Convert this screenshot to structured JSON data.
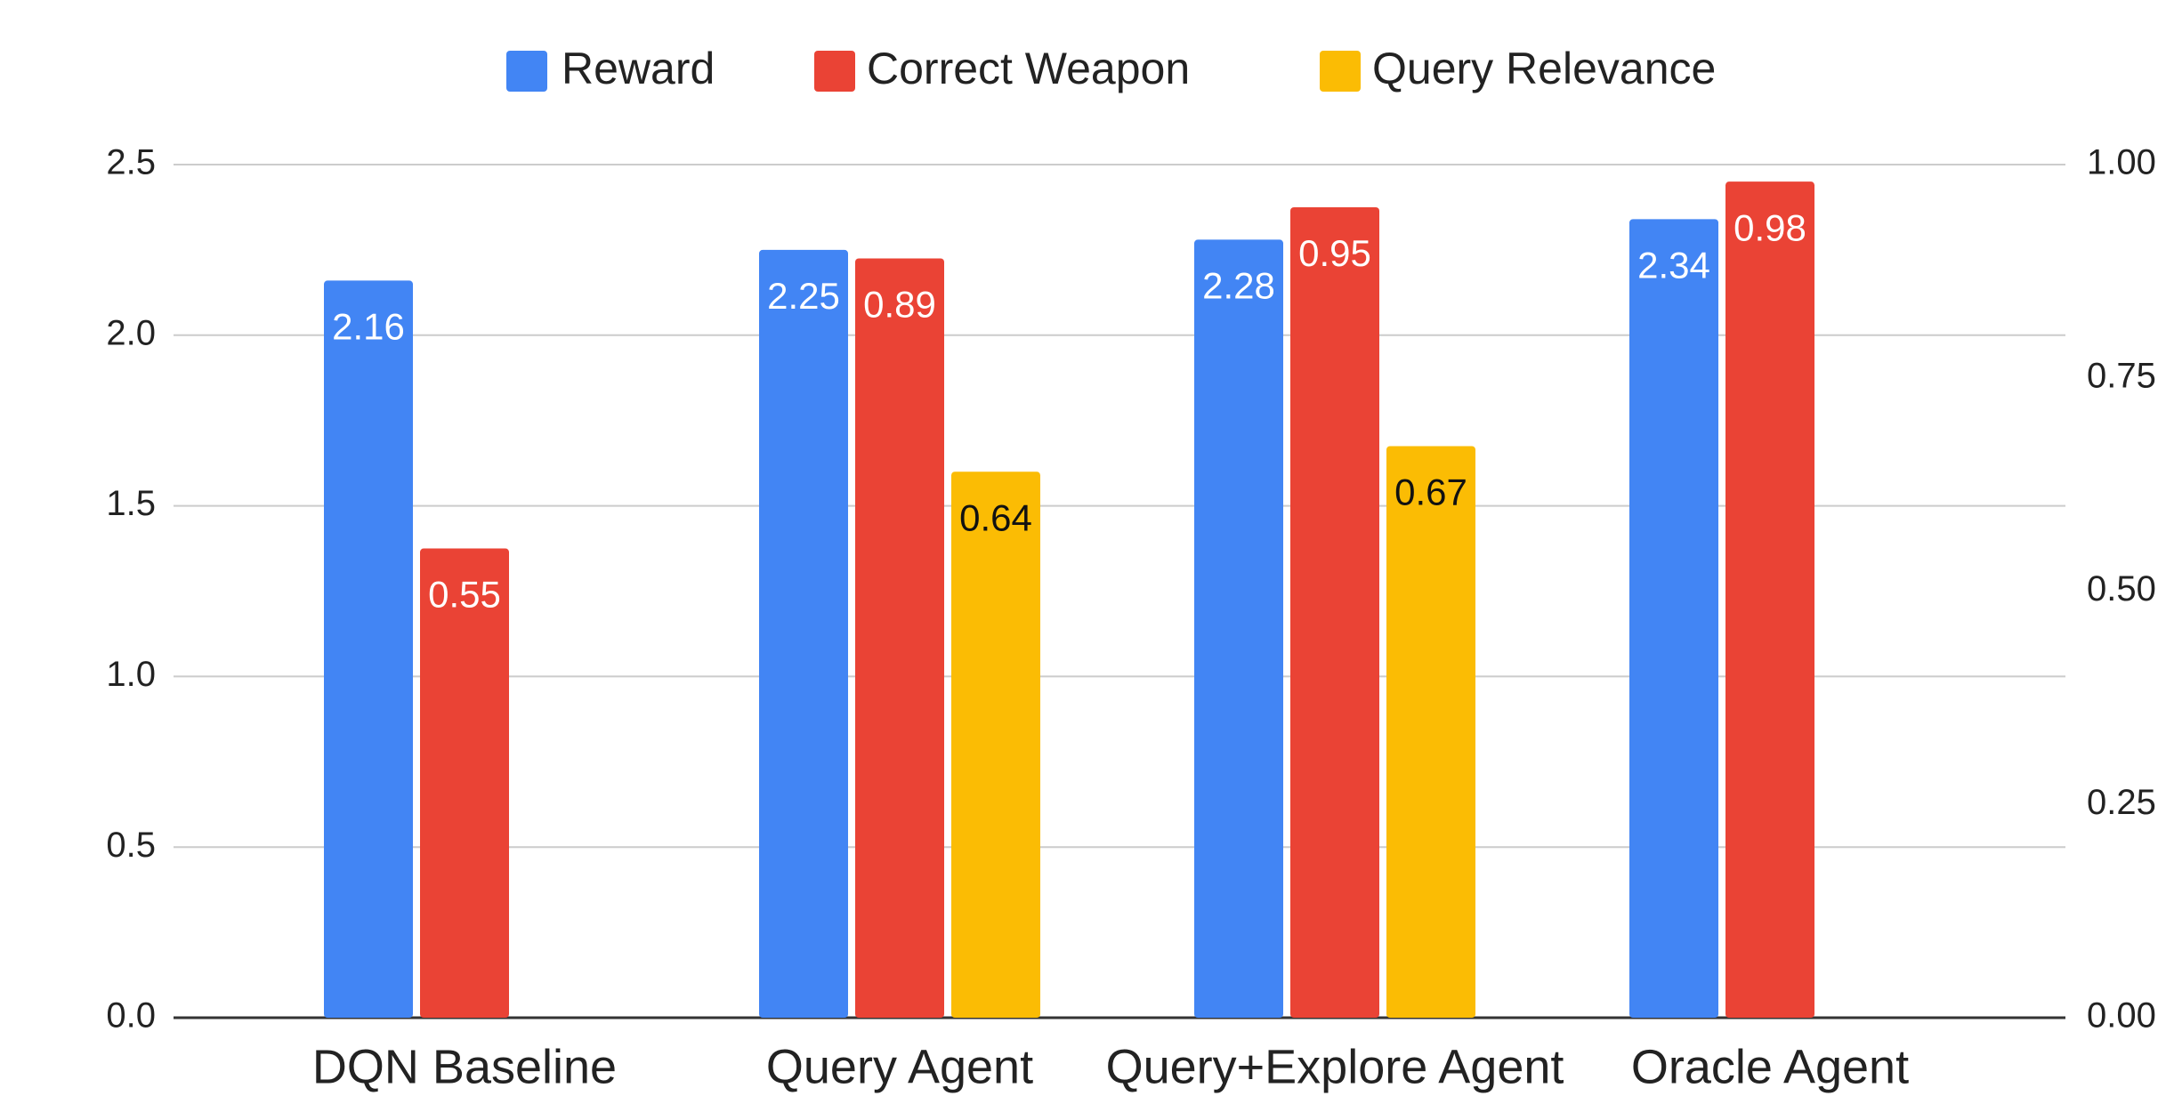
{
  "chart_data": {
    "type": "bar",
    "categories": [
      "DQN Baseline",
      "Query Agent",
      "Query+Explore Agent",
      "Oracle Agent"
    ],
    "series": [
      {
        "name": "Reward",
        "color": "#4285f4",
        "values": [
          2.16,
          2.25,
          2.28,
          2.34
        ]
      },
      {
        "name": "Correct Weapon",
        "color": "#ea4335",
        "axis": "y2",
        "values": [
          0.55,
          0.89,
          0.95,
          0.98
        ]
      },
      {
        "name": "Query Relevance",
        "color": "#fbbc04",
        "axis": "y2",
        "values": [
          null,
          0.64,
          0.67,
          null
        ]
      }
    ],
    "ylim": [
      0,
      2.5
    ],
    "yticks": [
      {
        "value": 0,
        "label": "0.0"
      },
      0.5,
      {
        "value": 1,
        "label": "1.0"
      },
      1.5,
      {
        "value": 2,
        "label": "2.0"
      },
      2.5
    ],
    "y2lim": [
      0,
      1
    ],
    "y2ticks": [
      {
        "value": 0,
        "label": "0.00"
      },
      0.25,
      {
        "value": 0.5,
        "label": "0.50"
      },
      0.75,
      {
        "value": 1,
        "label": "1.00"
      }
    ],
    "grid": true,
    "legend": "top"
  }
}
